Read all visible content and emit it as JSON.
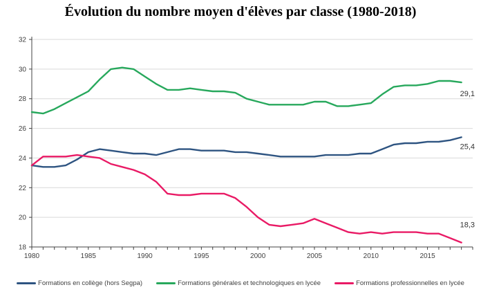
{
  "chart_data": {
    "type": "line",
    "title": "Évolution du nombre moyen d'élèves par classe (1980-2018)",
    "x": [
      1980,
      1981,
      1982,
      1983,
      1984,
      1985,
      1986,
      1987,
      1988,
      1989,
      1990,
      1991,
      1992,
      1993,
      1994,
      1995,
      1996,
      1997,
      1998,
      1999,
      2000,
      2001,
      2002,
      2003,
      2004,
      2005,
      2006,
      2007,
      2008,
      2009,
      2010,
      2011,
      2012,
      2013,
      2014,
      2015,
      2016,
      2017,
      2018
    ],
    "series": [
      {
        "name": "Formations en collège (hors Segpa)",
        "color": "#2E5481",
        "end_label": "25,4",
        "values": [
          23.5,
          23.4,
          23.4,
          23.5,
          23.9,
          24.4,
          24.6,
          24.5,
          24.4,
          24.3,
          24.3,
          24.2,
          24.4,
          24.6,
          24.6,
          24.5,
          24.5,
          24.5,
          24.4,
          24.4,
          24.3,
          24.2,
          24.1,
          24.1,
          24.1,
          24.1,
          24.2,
          24.2,
          24.2,
          24.3,
          24.3,
          24.6,
          24.9,
          25.0,
          25.0,
          25.1,
          25.1,
          25.2,
          25.4
        ]
      },
      {
        "name": "Formations générales et technologiques en lycée",
        "color": "#27A85C",
        "end_label": "29,1",
        "values": [
          27.1,
          27.0,
          27.3,
          27.7,
          28.1,
          28.5,
          29.3,
          30.0,
          30.1,
          30.0,
          29.5,
          29.0,
          28.6,
          28.6,
          28.7,
          28.6,
          28.5,
          28.5,
          28.4,
          28.0,
          27.8,
          27.6,
          27.6,
          27.6,
          27.6,
          27.8,
          27.8,
          27.5,
          27.5,
          27.6,
          27.7,
          28.3,
          28.8,
          28.9,
          28.9,
          29.0,
          29.2,
          29.2,
          29.1
        ]
      },
      {
        "name": "Formations professionnelles en lycée",
        "color": "#E91A65",
        "end_label": "18,3",
        "values": [
          23.5,
          24.1,
          24.1,
          24.1,
          24.2,
          24.1,
          24.0,
          23.6,
          23.4,
          23.2,
          22.9,
          22.4,
          21.6,
          21.5,
          21.5,
          21.6,
          21.6,
          21.6,
          21.3,
          20.7,
          20.0,
          19.5,
          19.4,
          19.5,
          19.6,
          19.9,
          19.6,
          19.3,
          19.0,
          18.9,
          19.0,
          18.9,
          19.0,
          19.0,
          19.0,
          18.9,
          18.9,
          18.6,
          18.3
        ]
      }
    ],
    "ylim": [
      18,
      32
    ],
    "ytick_step": 2,
    "yticks": [
      "18",
      "20",
      "22",
      "24",
      "26",
      "28",
      "30",
      "32"
    ],
    "xticks_labeled": [
      "1980",
      "1985",
      "1990",
      "1995",
      "2000",
      "2005",
      "2010",
      "2015"
    ],
    "grid": "horizontal",
    "legend_position": "bottom",
    "colors": {
      "grid": "#D9D9D9",
      "axis": "#404040",
      "tick_label": "#404040",
      "end_label": "#333333",
      "background": "#FFFFFF"
    }
  }
}
